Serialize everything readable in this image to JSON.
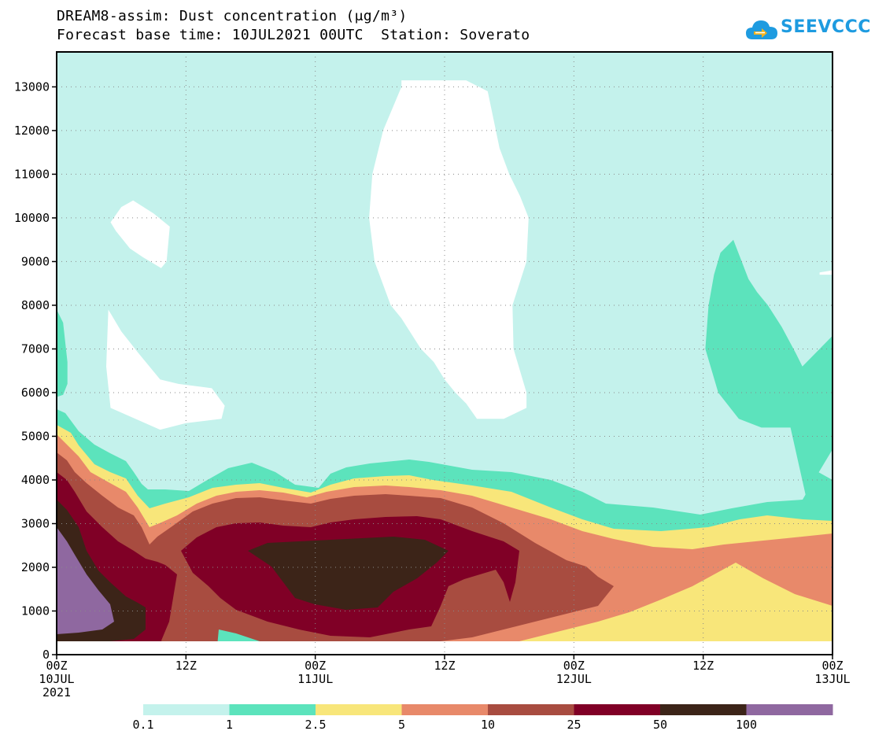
{
  "header": {
    "title_line_1": "DREAM8-assim: Dust concentration (μg/m³)",
    "title_line_2": "Forecast base time: 10JUL2021 00UTC  Station: Soverato",
    "logo_text": "SEEVCCC",
    "logo_icon": "cloud-icon"
  },
  "chart_data": {
    "type": "heatmap",
    "title": "DREAM8-assim: Dust concentration (μg/m³)",
    "subtitle": "Forecast base time: 10JUL2021 00UTC  Station: Soverato",
    "xlabel": "",
    "ylabel": "",
    "x_range_hours": [
      0,
      72
    ],
    "ylim": [
      0,
      13800
    ],
    "y_ticks": [
      0,
      1000,
      2000,
      3000,
      4000,
      5000,
      6000,
      7000,
      8000,
      9000,
      10000,
      11000,
      12000,
      13000
    ],
    "y_tick_labels": [
      "0",
      "1000",
      "2000",
      "3000",
      "4000",
      "5000",
      "6000",
      "7000",
      "8000",
      "9000",
      "10000",
      "11000",
      "12000",
      "13000"
    ],
    "x_ticks": [
      {
        "hour": 0,
        "label": "00Z",
        "sub": "10JUL",
        "sub2": "2021"
      },
      {
        "hour": 12,
        "label": "12Z",
        "sub": "",
        "sub2": ""
      },
      {
        "hour": 24,
        "label": "00Z",
        "sub": "11JUL",
        "sub2": ""
      },
      {
        "hour": 36,
        "label": "12Z",
        "sub": "",
        "sub2": ""
      },
      {
        "hour": 48,
        "label": "00Z",
        "sub": "12JUL",
        "sub2": ""
      },
      {
        "hour": 60,
        "label": "12Z",
        "sub": "",
        "sub2": ""
      },
      {
        "hour": 72,
        "label": "00Z",
        "sub": "13JUL",
        "sub2": ""
      }
    ],
    "grid": true,
    "legend_placement": "bottom",
    "levels": [
      0.1,
      1,
      2.5,
      5,
      10,
      25,
      50,
      100
    ],
    "level_labels": [
      "0.1",
      "1",
      "2.5",
      "5",
      "10",
      "25",
      "50",
      "100"
    ],
    "colors": [
      "#c4f2ec",
      "#5ce3bc",
      "#f8e67a",
      "#e8896a",
      "#a84c40",
      "#800026",
      "#3c2418",
      "#8f68a0"
    ],
    "bottom_mask_altitude": 300,
    "contours": [
      {
        "name": "0.1",
        "color": "#ffffff",
        "points": [
          [
            32,
            13150
          ],
          [
            38,
            13150
          ],
          [
            40,
            12900
          ],
          [
            41.1,
            11600
          ],
          [
            42,
            11000
          ],
          [
            43,
            10500
          ],
          [
            43.8,
            10000
          ],
          [
            43.6,
            9000
          ],
          [
            42.3,
            8000
          ],
          [
            42.4,
            7000
          ],
          [
            43.6,
            6000
          ],
          [
            43.6,
            5650
          ],
          [
            41.5,
            5400
          ],
          [
            39,
            5400
          ],
          [
            38,
            5750
          ],
          [
            37,
            6000
          ],
          [
            36,
            6300
          ],
          [
            35,
            6700
          ],
          [
            33.8,
            7000
          ],
          [
            32,
            7700
          ],
          [
            31,
            8000
          ],
          [
            29.5,
            9000
          ],
          [
            29,
            10000
          ],
          [
            29.3,
            11000
          ],
          [
            30.3,
            12000
          ],
          [
            32,
            13000
          ]
        ]
      },
      {
        "name": "0.1",
        "color": "#ffffff",
        "points": [
          [
            5,
            9900
          ],
          [
            6,
            10250
          ],
          [
            7.1,
            10400
          ],
          [
            9,
            10100
          ],
          [
            10.5,
            9800
          ],
          [
            10.2,
            9000
          ],
          [
            9.7,
            8850
          ],
          [
            8,
            9100
          ],
          [
            6.8,
            9300
          ],
          [
            5.5,
            9700
          ]
        ]
      },
      {
        "name": "0.1",
        "color": "#ffffff",
        "points": [
          [
            4.8,
            7900
          ],
          [
            6,
            7400
          ],
          [
            7.6,
            6900
          ],
          [
            9.6,
            6300
          ],
          [
            11.3,
            6200
          ],
          [
            14.4,
            6100
          ],
          [
            15.6,
            5700
          ],
          [
            15.3,
            5400
          ],
          [
            12,
            5300
          ],
          [
            9.6,
            5150
          ],
          [
            5,
            5650
          ],
          [
            4.6,
            6600
          ]
        ]
      },
      {
        "name": "0.1",
        "color": "#ffffff",
        "points": [
          [
            70.8,
            8750
          ],
          [
            72,
            8800
          ],
          [
            72,
            8700
          ],
          [
            70.8,
            8700
          ]
        ]
      },
      {
        "name": "1",
        "color": "#5ce3bc",
        "points": [
          [
            0,
            7900
          ],
          [
            0.6,
            7600
          ],
          [
            1,
            6700
          ],
          [
            1,
            6200
          ],
          [
            0.6,
            5950
          ],
          [
            0,
            5900
          ]
        ]
      },
      {
        "name": "1",
        "color": "#5ce3bc",
        "points": [
          [
            62.8,
            9500
          ],
          [
            64.2,
            8600
          ],
          [
            65,
            8300
          ],
          [
            66,
            8000
          ],
          [
            67.3,
            7500
          ],
          [
            68.6,
            6900
          ],
          [
            69.2,
            6600
          ],
          [
            72,
            7300
          ],
          [
            72,
            4700
          ],
          [
            70.3,
            4000
          ],
          [
            69.6,
            3550
          ],
          [
            68.1,
            5200
          ],
          [
            65.4,
            5200
          ],
          [
            63.3,
            5400
          ],
          [
            61.4,
            6000
          ],
          [
            60.2,
            7000
          ],
          [
            60.5,
            8000
          ],
          [
            61,
            8700
          ],
          [
            61.6,
            9200
          ]
        ]
      }
    ]
  }
}
